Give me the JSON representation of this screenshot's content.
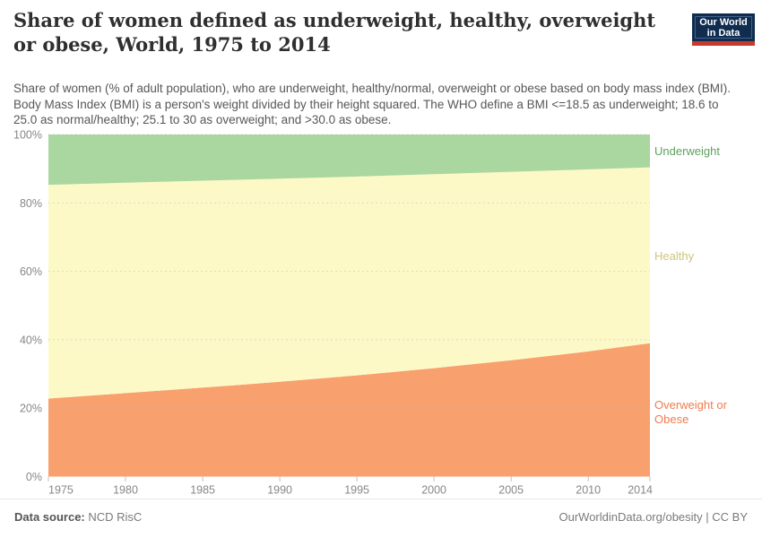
{
  "header": {
    "title": "Share of women defined as underweight, healthy, overweight or obese, World, 1975 to 2014",
    "subtitle": "Share of women (% of adult population), who are underweight, healthy/normal, overweight or obese based on body mass index (BMI). Body Mass Index (BMI) is a person's weight divided by their height squared. The WHO define a BMI <=18.5 as underweight; 18.6 to 25.0 as normal/healthy; 25.1 to 30 as overweight; and >30.0 as obese."
  },
  "logo": {
    "line1": "Our World",
    "line2": "in Data",
    "bg_color": "#102d50",
    "accent_color": "#c8392e"
  },
  "chart_data": {
    "type": "area",
    "stacked": true,
    "title": "Share of women defined as underweight, healthy, overweight or obese, World, 1975 to 2014",
    "xlabel": "",
    "ylabel": "",
    "xlim": [
      1975,
      2014
    ],
    "ylim": [
      0,
      100
    ],
    "grid": true,
    "legend_position": "right",
    "x": [
      1975,
      1980,
      1985,
      1990,
      1995,
      2000,
      2005,
      2010,
      2014
    ],
    "series": [
      {
        "name": "Overweight or Obese",
        "values": [
          22.8,
          24.4,
          26.0,
          27.7,
          29.6,
          31.7,
          34.0,
          36.6,
          39.0
        ],
        "fill_color": "#f8a06e",
        "label_color": "#ee7d4f"
      },
      {
        "name": "Healthy",
        "values": [
          62.5,
          61.5,
          60.5,
          59.4,
          58.1,
          56.7,
          55.1,
          53.2,
          51.4
        ],
        "fill_color": "#fcf9c6",
        "label_color": "#cdc67c"
      },
      {
        "name": "Underweight",
        "values": [
          14.7,
          14.1,
          13.5,
          12.9,
          12.3,
          11.6,
          10.9,
          10.2,
          9.6
        ],
        "fill_color": "#aad6a0",
        "label_color": "#5fa05f"
      }
    ],
    "x_ticks": [
      {
        "v": 1975,
        "label": "1975"
      },
      {
        "v": 1980,
        "label": "1980"
      },
      {
        "v": 1985,
        "label": "1985"
      },
      {
        "v": 1990,
        "label": "1990"
      },
      {
        "v": 1995,
        "label": "1995"
      },
      {
        "v": 2000,
        "label": "2000"
      },
      {
        "v": 2005,
        "label": "2005"
      },
      {
        "v": 2010,
        "label": "2010"
      },
      {
        "v": 2014,
        "label": "2014"
      }
    ],
    "y_ticks": [
      {
        "v": 0,
        "label": "0%"
      },
      {
        "v": 20,
        "label": "20%"
      },
      {
        "v": 40,
        "label": "40%"
      },
      {
        "v": 60,
        "label": "60%"
      },
      {
        "v": 80,
        "label": "80%"
      },
      {
        "v": 100,
        "label": "100%"
      }
    ],
    "y_gridlines": [
      20,
      40,
      60,
      80,
      100
    ]
  },
  "footer": {
    "source_label": "Data source:",
    "source_value": " NCD RisC",
    "attribution": "OurWorldinData.org/obesity | CC BY"
  }
}
